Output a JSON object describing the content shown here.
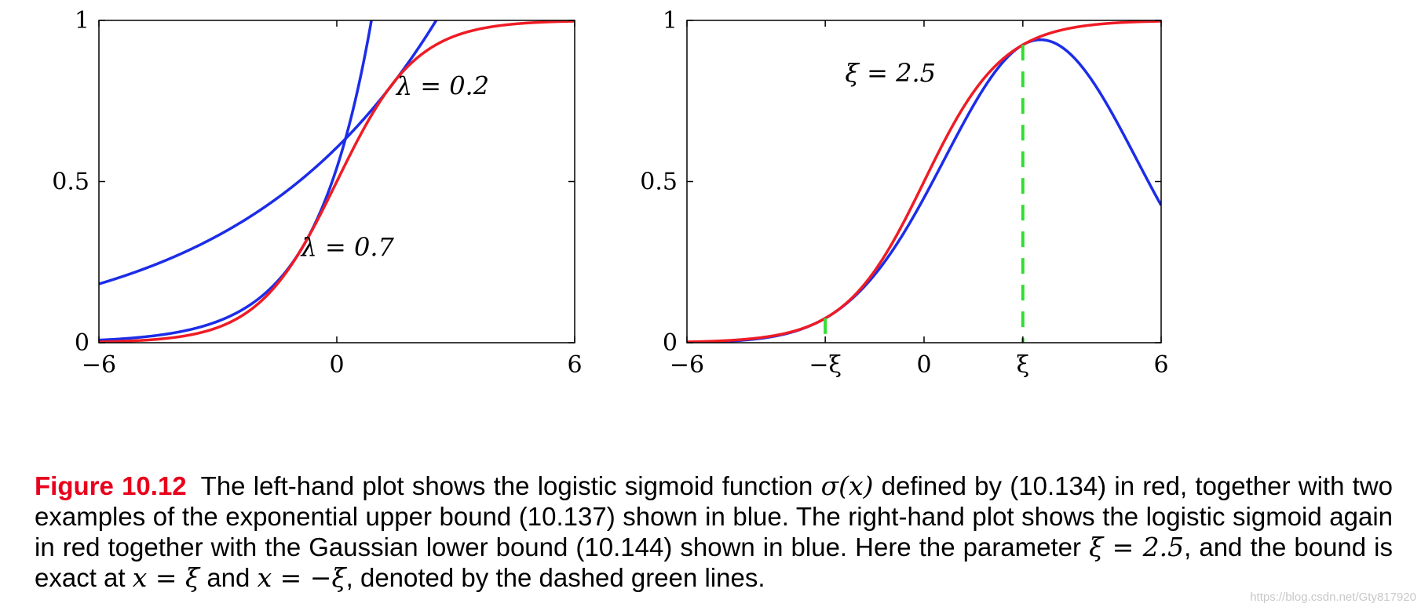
{
  "chart_data": [
    {
      "type": "line",
      "function": "logistic sigmoid with exponential upper bounds",
      "xlim": [
        -6,
        6
      ],
      "ylim": [
        0,
        1
      ],
      "x_ticks": [
        "−6",
        "0",
        "6"
      ],
      "y_ticks": [
        "0",
        "0.5",
        "1"
      ],
      "series": [
        {
          "id": "sigmoid",
          "color": "#ee1c25",
          "formula": "1/(1+exp(-x))"
        },
        {
          "id": "upper_bound_0.7",
          "color": "#1c2de8",
          "lambda": 0.7,
          "xi_tangent": -0.8
        },
        {
          "id": "upper_bound_0.2",
          "color": "#1c2de8",
          "lambda": 0.2,
          "xi_tangent": 1.5
        }
      ],
      "annotations": [
        {
          "text": "λ = 0.2",
          "at_x": 1.5,
          "at_y": 0.77
        },
        {
          "text": "λ = 0.7",
          "at_x": -0.9,
          "at_y": 0.27
        }
      ]
    },
    {
      "type": "line",
      "function": "logistic sigmoid with Gaussian lower bound",
      "xlim": [
        -6,
        6
      ],
      "ylim": [
        0,
        1
      ],
      "x_ticks": [
        "−6",
        "−ξ",
        "0",
        "ξ",
        "6"
      ],
      "x_tick_values": [
        -6,
        -2.5,
        0,
        2.5,
        6
      ],
      "y_ticks": [
        "0",
        "0.5",
        "1"
      ],
      "xi": 2.5,
      "series": [
        {
          "id": "sigmoid",
          "color": "#ee1c25",
          "formula": "1/(1+exp(-x))"
        },
        {
          "id": "lower_bound",
          "color": "#1c2de8",
          "xi": 2.5
        }
      ],
      "dashed_lines": [
        {
          "x": -2.5,
          "color": "#33dd33"
        },
        {
          "x": 2.5,
          "color": "#33dd33"
        }
      ],
      "annotations": [
        {
          "text": "ξ = 2.5",
          "at_x": -2.0,
          "at_y": 0.81
        }
      ]
    }
  ],
  "caption": {
    "label": "Figure 10.12",
    "lines": [
      [
        "The left-hand plot shows the logistic sigmoid function ",
        {
          "m": "σ(x)"
        },
        " defined by (10.134) in red, together"
      ],
      [
        "with two examples of the exponential upper bound (10.137) shown in blue. The right-hand plot shows the logistic"
      ],
      [
        "sigmoid again in red together with the Gaussian lower bound (10.144) shown in blue.  Here the parameter"
      ],
      [
        {
          "m": "ξ = 2.5"
        },
        ", and the bound is exact at ",
        {
          "m": "x = ξ"
        },
        " and ",
        {
          "m": "x = −ξ"
        },
        ", denoted by the dashed green lines."
      ]
    ]
  },
  "watermark": "https://blog.csdn.net/Gty817920"
}
